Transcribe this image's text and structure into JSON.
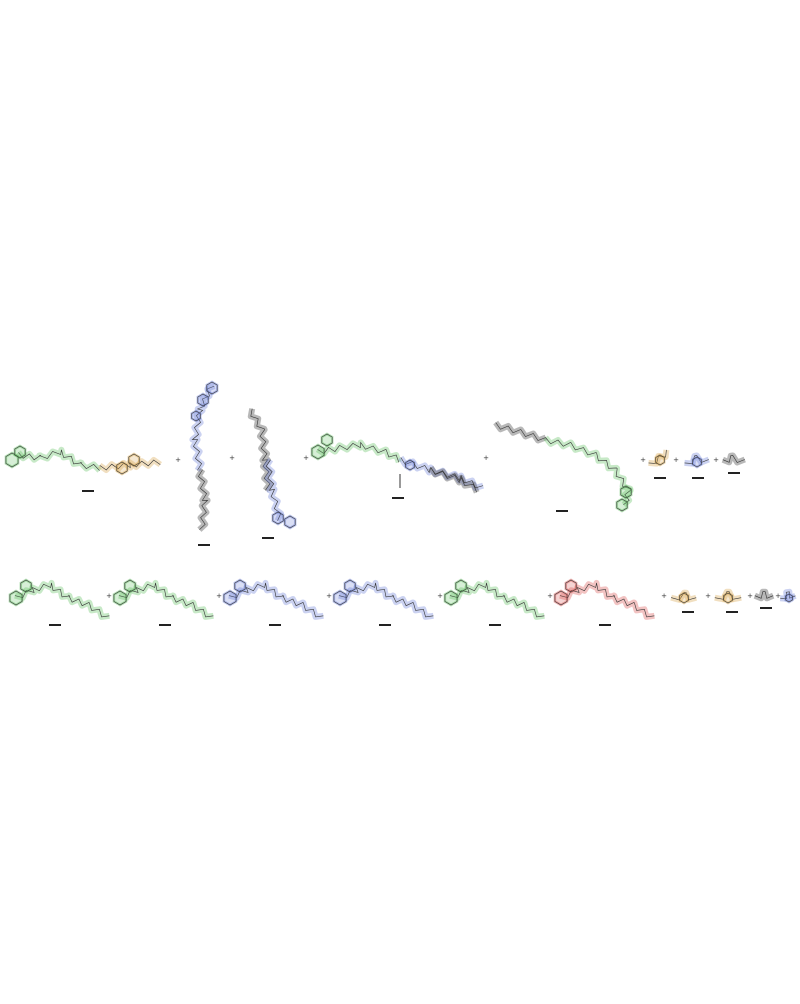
{
  "colors": {
    "background": "#ffffff",
    "bond_black": "#333333",
    "highlight_green": "#5fbf5f",
    "highlight_blue": "#6b7fd6",
    "highlight_gold": "#d8a44a",
    "highlight_red": "#d9534f",
    "label_gray": "#222222"
  },
  "operators": {
    "plus": "+",
    "arrow": "↓"
  },
  "rows": [
    {
      "name": "row-1",
      "molecules": [
        {
          "id": "m1",
          "highlight": "green",
          "label": ""
        },
        {
          "id": "m2",
          "highlight": "blue",
          "label": ""
        },
        {
          "id": "m3",
          "highlight": "blue",
          "label": ""
        },
        {
          "id": "m4",
          "highlight": "green",
          "label": ""
        },
        {
          "id": "m5",
          "highlight": "green",
          "label": ""
        },
        {
          "id": "m6",
          "highlight": "gold",
          "label": ""
        },
        {
          "id": "m7",
          "highlight": "blue",
          "label": ""
        },
        {
          "id": "m8",
          "highlight": "none",
          "label": ""
        }
      ]
    },
    {
      "name": "row-2",
      "molecules": [
        {
          "id": "p1",
          "highlight": "green",
          "label": ""
        },
        {
          "id": "p2",
          "highlight": "green",
          "label": ""
        },
        {
          "id": "p3",
          "highlight": "blue",
          "label": ""
        },
        {
          "id": "p4",
          "highlight": "blue",
          "label": ""
        },
        {
          "id": "p5",
          "highlight": "green",
          "label": ""
        },
        {
          "id": "p6",
          "highlight": "mixed",
          "label": ""
        },
        {
          "id": "p7",
          "highlight": "gold",
          "label": ""
        },
        {
          "id": "p8",
          "highlight": "gold",
          "label": ""
        },
        {
          "id": "p9",
          "highlight": "none",
          "label": ""
        },
        {
          "id": "p10",
          "highlight": "blue",
          "label": ""
        }
      ]
    }
  ]
}
